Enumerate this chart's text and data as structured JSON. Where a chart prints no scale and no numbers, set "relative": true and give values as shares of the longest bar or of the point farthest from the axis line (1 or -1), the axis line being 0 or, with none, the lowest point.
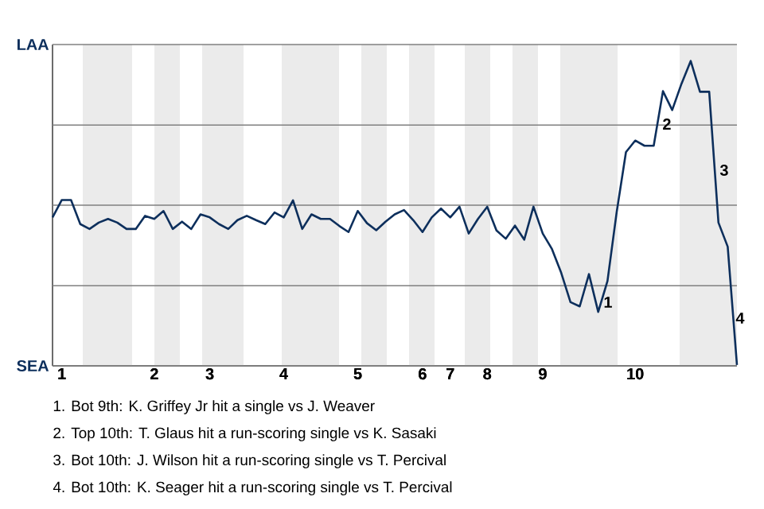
{
  "chart_data": {
    "type": "line",
    "relative": true,
    "categories": [
      null,
      "1",
      null,
      null,
      null,
      null,
      null,
      null,
      null,
      null,
      null,
      "2",
      null,
      null,
      null,
      null,
      null,
      "3",
      null,
      null,
      null,
      null,
      null,
      null,
      null,
      "4",
      null,
      null,
      null,
      null,
      null,
      null,
      null,
      "5",
      null,
      null,
      null,
      null,
      null,
      null,
      "6",
      null,
      null,
      "7",
      null,
      null,
      null,
      "8",
      null,
      null,
      null,
      null,
      null,
      "9",
      null,
      null,
      null,
      null,
      null,
      null,
      null,
      null,
      null,
      "10",
      null,
      null,
      null,
      null,
      null,
      null,
      null,
      null,
      null,
      null,
      null
    ],
    "marker": "none",
    "line_style": "solid",
    "ref_lines": [
      {
        "axis": "y",
        "value": 0,
        "label": "SEA",
        "color": "#808080"
      },
      {
        "axis": "y",
        "value": 0.263,
        "color": "#808080"
      },
      {
        "axis": "y",
        "value": 0.527,
        "color": "#808080"
      },
      {
        "axis": "y",
        "value": 0.79,
        "color": "#808080"
      },
      {
        "axis": "y",
        "value": 1.054,
        "label": "LAA",
        "color": "#808080"
      }
    ],
    "series": [
      {
        "color": "#0d2f5c",
        "values": [
          0.487,
          0.544,
          0.544,
          0.465,
          0.449,
          0.47,
          0.482,
          0.47,
          0.449,
          0.449,
          0.492,
          0.482,
          0.508,
          0.449,
          0.473,
          0.449,
          0.497,
          0.487,
          0.465,
          0.449,
          0.478,
          0.492,
          0.478,
          0.465,
          0.503,
          0.487,
          0.543,
          0.449,
          0.497,
          0.482,
          0.482,
          0.459,
          0.439,
          0.508,
          0.468,
          0.445,
          0.473,
          0.497,
          0.511,
          0.478,
          0.439,
          0.487,
          0.516,
          0.487,
          0.522,
          0.434,
          0.482,
          0.522,
          0.444,
          0.417,
          0.46,
          0.414,
          0.522,
          0.434,
          0.383,
          0.305,
          0.209,
          0.195,
          0.301,
          0.177,
          0.278,
          0.505,
          0.701,
          0.739,
          0.722,
          0.722,
          0.901,
          0.839,
          0.925,
          1,
          0.899,
          0.899,
          0.47,
          0.391,
          0.003
        ]
      }
    ],
    "annotations": [
      "1",
      "2",
      "3",
      "4",
      "1. Bot 9th: K. Griffey Jr hit a single vs J. Weaver",
      "2. Top 10th: T. Glaus hit a run-scoring single vs K. Sasaki",
      "3. Bot 10th: J. Wilson hit a run-scoring single vs T. Percival",
      "4. Bot 10th: K. Seager hit a run-scoring single vs T. Percival"
    ]
  }
}
